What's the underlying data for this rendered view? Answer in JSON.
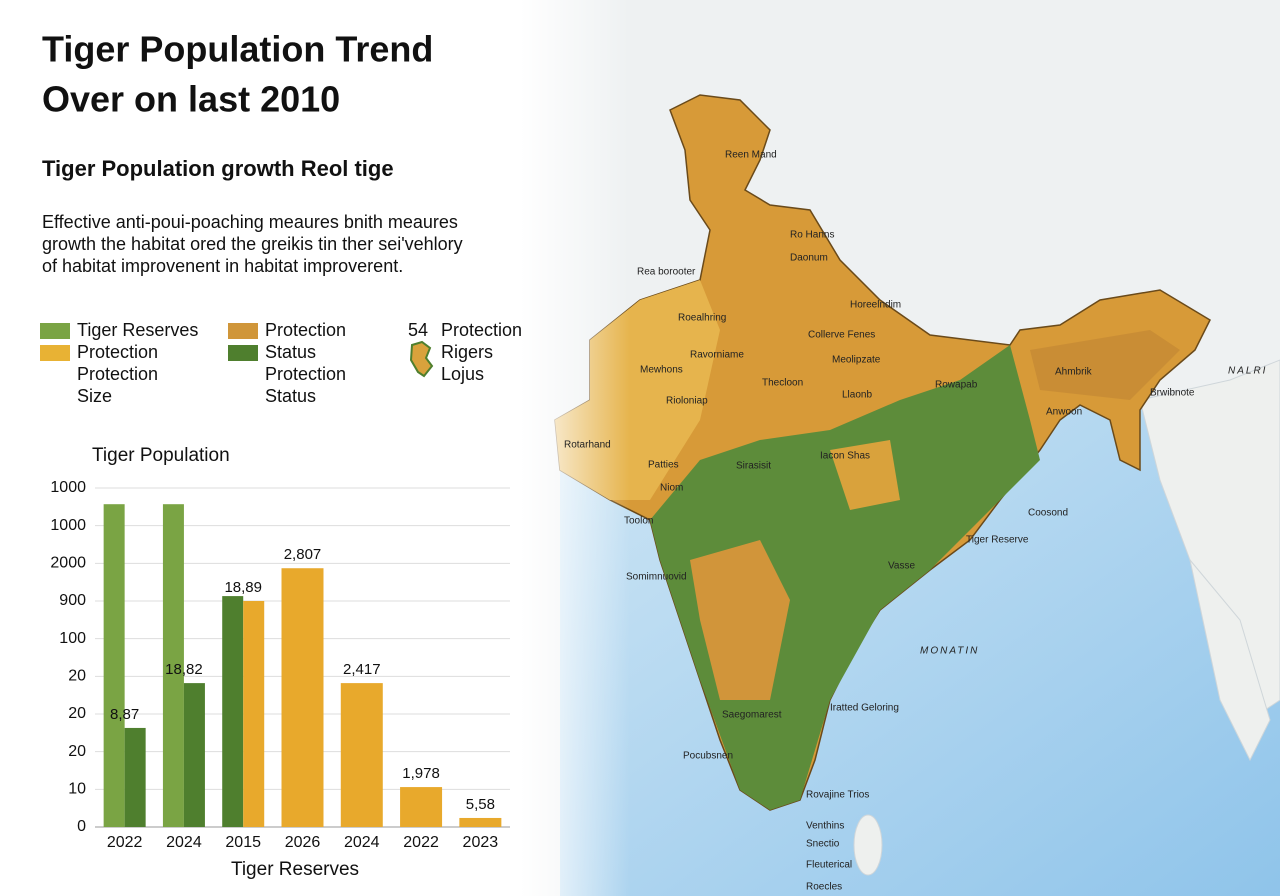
{
  "header": {
    "title_lines": [
      "Tiger Population Trend",
      "Over on last 2010"
    ],
    "subtitle": "Tiger Population growth Reol tige",
    "description": [
      "Effective anti-poui-poaching meaures bnith meaures",
      "growth the habitat ored the greikis tin ther sei'vehlory",
      "of habitat improvenent in habitat improverent."
    ]
  },
  "legend": [
    {
      "lines": [
        "Tiger Reserves"
      ],
      "color": "#7aa444"
    },
    {
      "lines": [
        "Protection",
        "Protection",
        "Size"
      ],
      "color": "#e8b234"
    },
    {
      "lines": [
        "Protection"
      ],
      "color": "#d0963a"
    },
    {
      "lines": [
        "Status",
        "Protection",
        "Status"
      ],
      "color": "#4f7f2e"
    },
    {
      "prefix": "54",
      "lines": [
        "Protection",
        "Rigers",
        "Lojus"
      ]
    }
  ],
  "chart_data": {
    "type": "bar",
    "title": "Tiger Population",
    "x_label": "Tiger Reserves",
    "categories": [
      "2022",
      "2024",
      "2015",
      "2026",
      "2024",
      "2022",
      "2023"
    ],
    "series": [
      {
        "color": "#7aa444",
        "values": [
          8.57,
          8.57,
          null,
          null,
          null,
          null,
          null
        ],
        "labels": [
          null,
          null,
          null,
          null,
          null,
          null,
          null
        ]
      },
      {
        "color": "#4f7f2e",
        "values": [
          2.63,
          3.82,
          6.13,
          null,
          null,
          null,
          null
        ],
        "labels": [
          "8,87",
          "18,82",
          null,
          null,
          null,
          null,
          null
        ]
      },
      {
        "color": "#e8a92c",
        "values": [
          null,
          null,
          6.0,
          6.87,
          3.82,
          1.06,
          0.24
        ],
        "labels": [
          null,
          null,
          "18,89",
          "2,807",
          "2,417",
          "1,978",
          "5,58"
        ]
      }
    ],
    "ylim": [
      0,
      9
    ],
    "yticks": [
      0,
      {
        "value": 1,
        "label": "10"
      },
      {
        "value": 2,
        "label": "20"
      },
      {
        "value": 3,
        "label": "20"
      },
      {
        "value": 4,
        "label": "20"
      },
      {
        "value": 5,
        "label": "100"
      },
      {
        "value": 6,
        "label": "900"
      },
      {
        "value": 7,
        "label": "2000"
      },
      {
        "value": 8,
        "label": "1000"
      },
      {
        "value": 9,
        "label": "1000"
      }
    ],
    "grid": true
  },
  "map": {
    "labels": [
      "Reen Mand",
      "Ro Hanns",
      "Daonum",
      "Rea borooter",
      "Horeelndim",
      "Roealhring",
      "Collerve Fenes",
      "Ravorniame",
      "Meolipzate",
      "Mewhons",
      "Thecloon",
      "Rioloniap",
      "Llaonb",
      "Rotarhand",
      "Patties",
      "Niom",
      "Toolon",
      "Sirasisit",
      "Iacon Shas",
      "Rowapab",
      "Ahmbrik",
      "Anwoon",
      "Brwibnote",
      "Coosond",
      "Tiger Reserve",
      "Somimnuovid",
      "Vasse",
      "Saegomarest",
      "Iratted Geloring",
      "Pocubsnen",
      "Rovajine Trios",
      "Venthins",
      "Snectio",
      "Fleuterical",
      "Roecles",
      "MONATIN",
      "NALRI"
    ]
  }
}
